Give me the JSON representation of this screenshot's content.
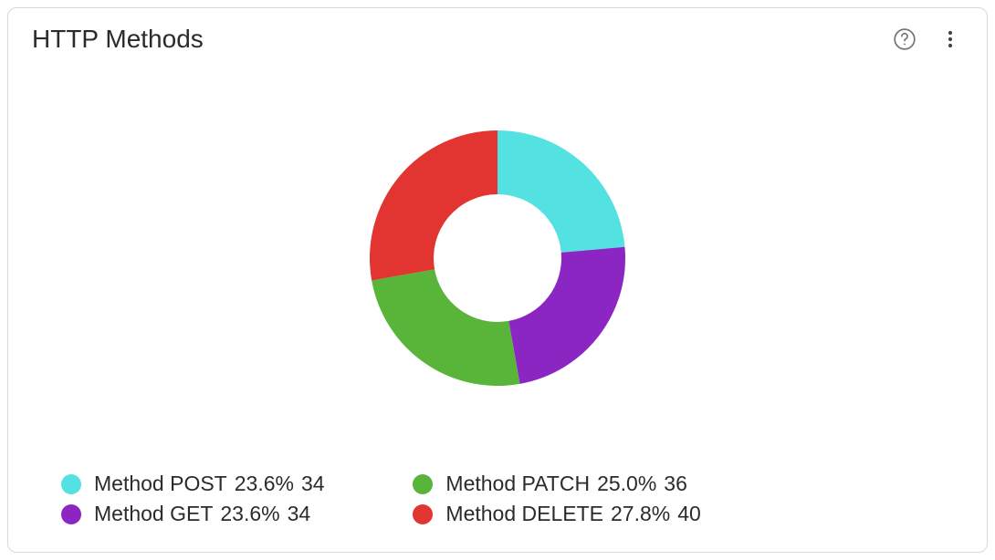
{
  "panel": {
    "title": "HTTP Methods",
    "background_color": "#ffffff",
    "border_color": "#d8d8d8",
    "text_color": "#2b2b2b",
    "title_fontsize": 28,
    "legend_fontsize": 23
  },
  "chart": {
    "type": "donut",
    "outer_radius": 140,
    "inner_radius": 70,
    "center_color": "#ffffff",
    "start_angle_deg": 0,
    "series": [
      {
        "key": "post",
        "name": "Method POST",
        "percent": "23.6%",
        "count": "34",
        "value": 23.6,
        "color": "#54e1e1"
      },
      {
        "key": "get",
        "name": "Method GET",
        "percent": "23.6%",
        "count": "34",
        "value": 23.6,
        "color": "#8b26c2"
      },
      {
        "key": "patch",
        "name": "Method PATCH",
        "percent": "25.0%",
        "count": "36",
        "value": 25.0,
        "color": "#58b53a"
      },
      {
        "key": "delete",
        "name": "Method DELETE",
        "percent": "27.8%",
        "count": "40",
        "value": 27.8,
        "color": "#e23430"
      }
    ],
    "legend_order": [
      "post",
      "patch",
      "get",
      "delete"
    ]
  }
}
